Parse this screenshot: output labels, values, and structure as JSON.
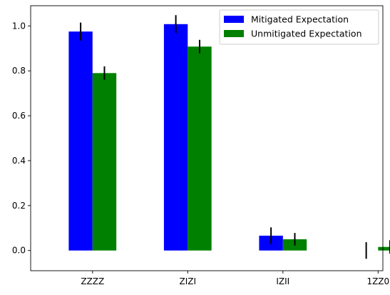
{
  "chart_data": {
    "type": "bar",
    "categories": [
      "ZZZZ",
      "ZIZI",
      "IZII",
      "1ZZ0"
    ],
    "series": [
      {
        "name": "Mitigated Expectation",
        "color": "#0000ff",
        "values": [
          0.975,
          1.008,
          0.066,
          0.0
        ],
        "errors": [
          0.04,
          0.04,
          0.037,
          0.037
        ]
      },
      {
        "name": "Unmitigated Expectation",
        "color": "#008000",
        "values": [
          0.79,
          0.908,
          0.05,
          0.016
        ],
        "errors": [
          0.03,
          0.03,
          0.028,
          0.03
        ]
      }
    ],
    "ylim": [
      -0.09,
      1.09
    ],
    "yticks": [
      "0.0",
      "0.2",
      "0.4",
      "0.6",
      "0.8",
      "1.0"
    ],
    "legend_position": "top-right",
    "grid": false
  }
}
